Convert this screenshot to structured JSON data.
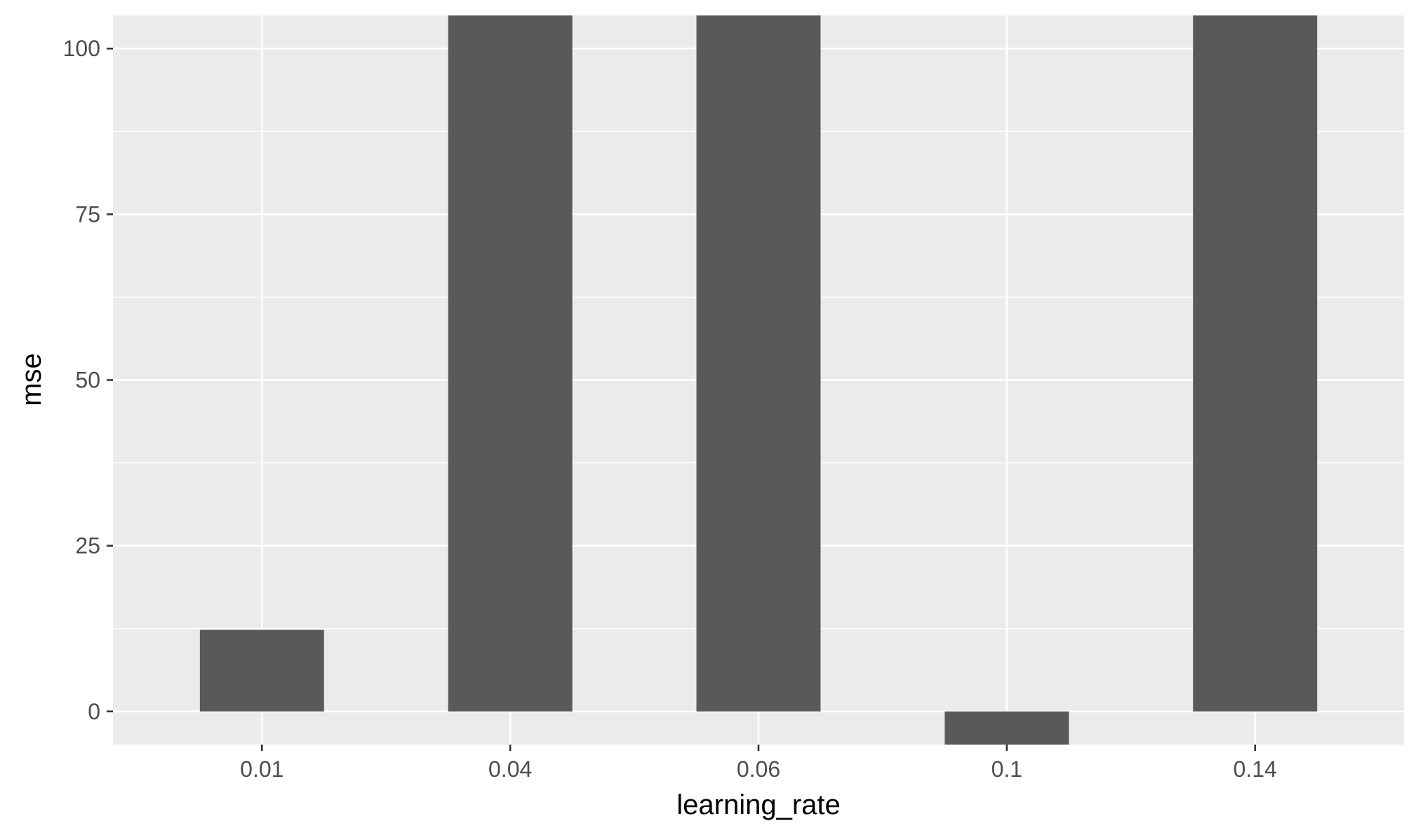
{
  "chart_data": {
    "type": "bar",
    "categories": [
      "0.01",
      "0.04",
      "0.06",
      "0.1",
      "0.14"
    ],
    "values": [
      12.3,
      106,
      106,
      -5,
      106
    ],
    "xlabel": "learning_rate",
    "ylabel": "mse",
    "ylim": [
      -5,
      105
    ],
    "yticks": [
      0,
      25,
      50,
      75,
      100
    ],
    "grid": true,
    "colors": {
      "panel": "#ebebeb",
      "grid": "#ffffff",
      "bar": "#595959",
      "tick": "#333333"
    }
  }
}
